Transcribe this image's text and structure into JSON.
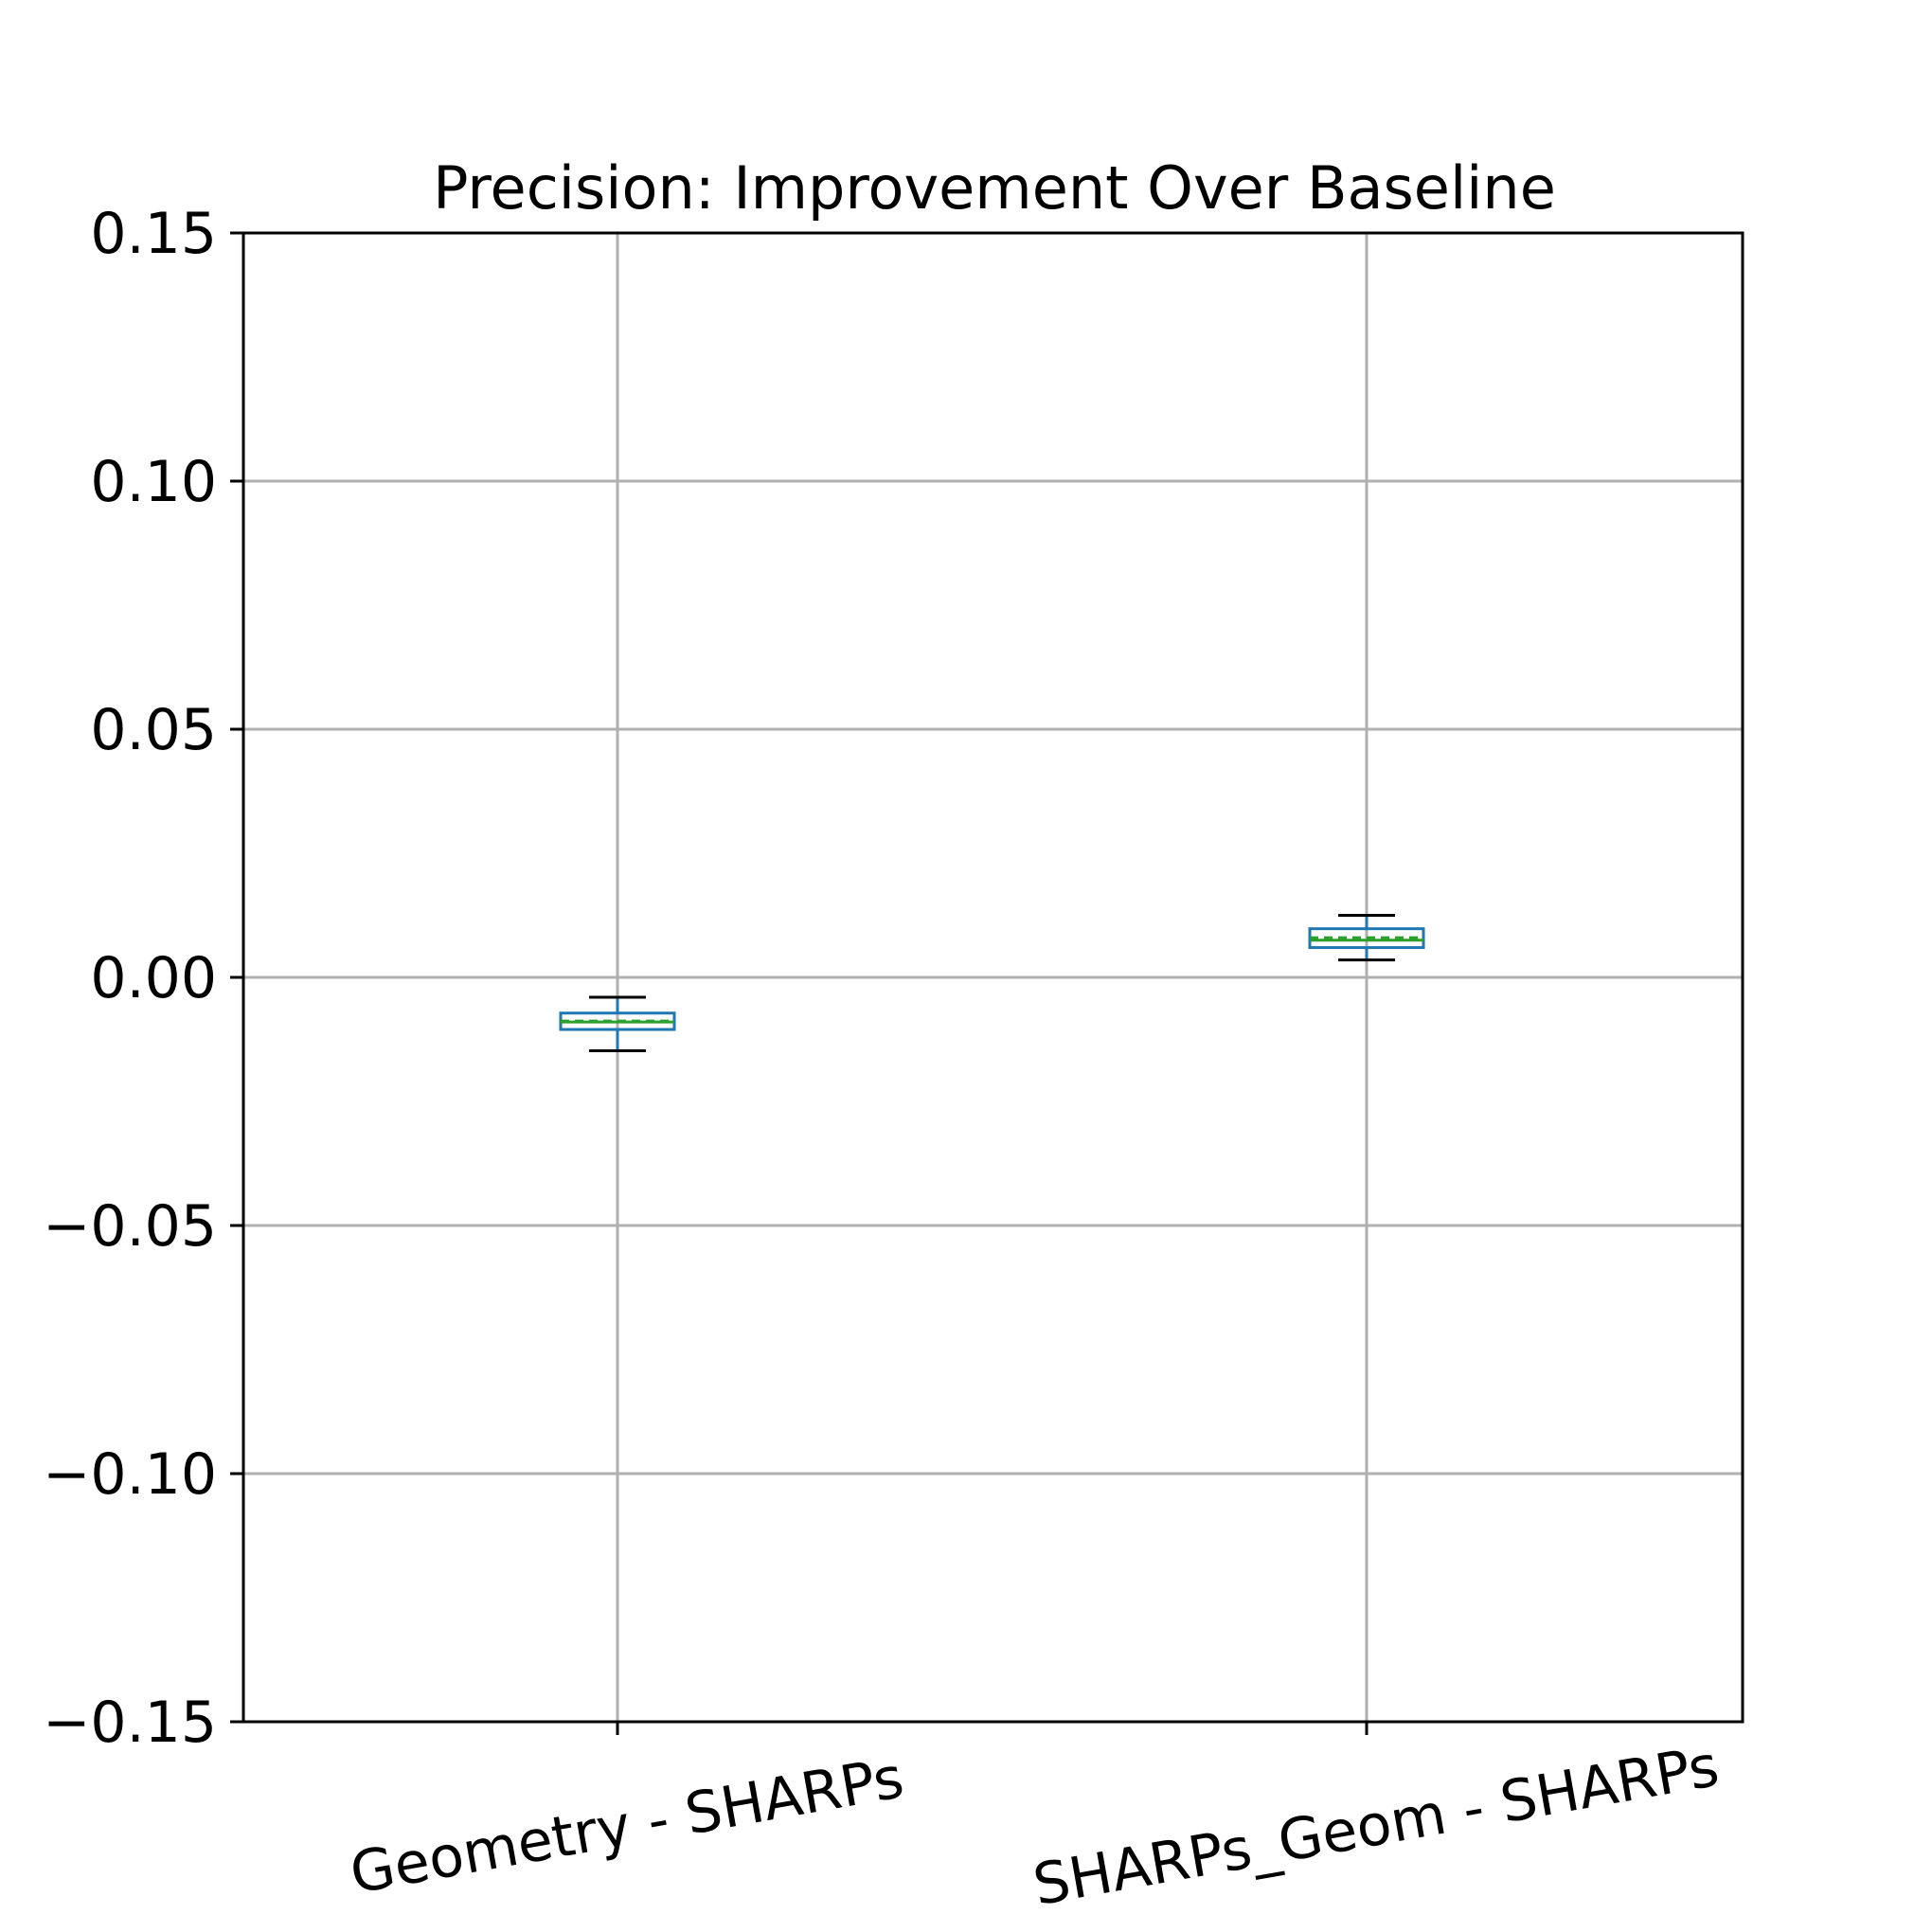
{
  "chart_data": {
    "type": "box",
    "title": "Precision: Improvement Over Baseline",
    "xlabel": "",
    "ylabel": "",
    "ylim": [
      -0.15,
      0.15
    ],
    "yticks": [
      -0.15,
      -0.1,
      -0.05,
      0.0,
      0.05,
      0.1,
      0.15
    ],
    "ytick_labels": [
      "−0.15",
      "−0.10",
      "−0.05",
      "0.00",
      "0.05",
      "0.10",
      "0.15"
    ],
    "grid": true,
    "categories": [
      "Geometry - SHARPs",
      "SHARPs_Geom - SHARPs"
    ],
    "boxes": [
      {
        "whislo": -0.0148,
        "q1": -0.0105,
        "median": -0.009,
        "mean": -0.0088,
        "q3": -0.0072,
        "whishi": -0.004
      },
      {
        "whislo": 0.0035,
        "q1": 0.006,
        "median": 0.0075,
        "mean": 0.008,
        "q3": 0.0098,
        "whishi": 0.0125
      }
    ],
    "colors": {
      "box": "#1f77b4",
      "median": "#2ca02c",
      "mean": "#2ca02c",
      "cap": "#000000",
      "grid": "#b0b0b0"
    }
  }
}
